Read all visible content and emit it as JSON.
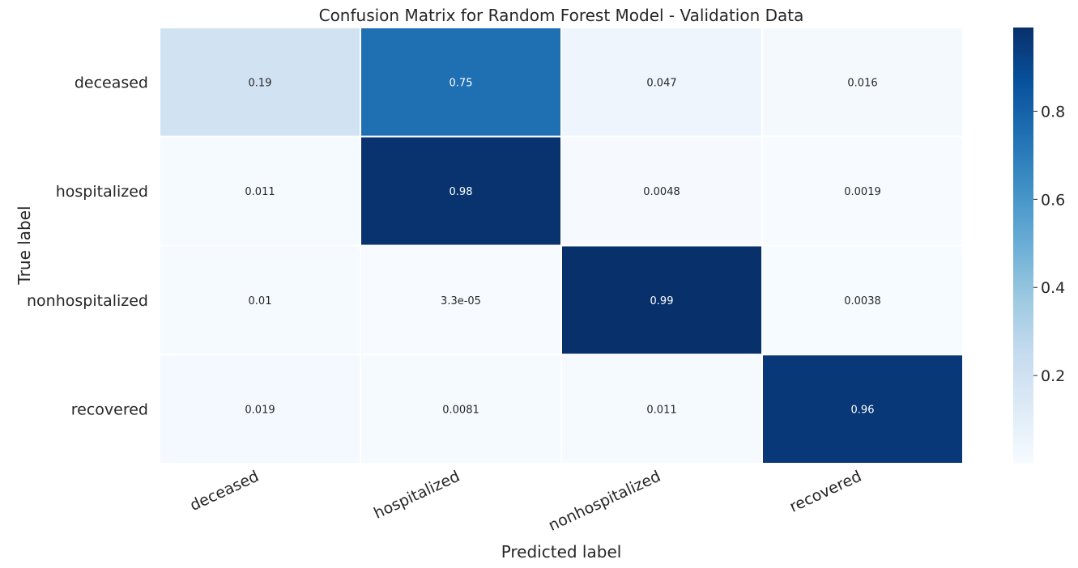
{
  "chart_data": {
    "type": "heatmap",
    "title": "Confusion Matrix for Random Forest Model - Validation Data",
    "xlabel": "Predicted label",
    "ylabel": "True label",
    "x_categories": [
      "deceased",
      "hospitalized",
      "nonhospitalized",
      "recovered"
    ],
    "y_categories": [
      "deceased",
      "hospitalized",
      "nonhospitalized",
      "recovered"
    ],
    "values": [
      [
        0.19,
        0.75,
        0.047,
        0.016
      ],
      [
        0.011,
        0.98,
        0.0048,
        0.0019
      ],
      [
        0.01,
        3.3e-05,
        0.99,
        0.0038
      ],
      [
        0.019,
        0.0081,
        0.011,
        0.96
      ]
    ],
    "annotations": [
      [
        "0.19",
        "0.75",
        "0.047",
        "0.016"
      ],
      [
        "0.011",
        "0.98",
        "0.0048",
        "0.0019"
      ],
      [
        "0.01",
        "3.3e-05",
        "0.99",
        "0.0038"
      ],
      [
        "0.019",
        "0.0081",
        "0.011",
        "0.96"
      ]
    ],
    "colormap": "Blues",
    "colorbar": {
      "range": [
        3.3e-05,
        0.99
      ],
      "ticks": [
        0.2,
        0.4,
        0.6,
        0.8
      ],
      "tick_labels": [
        "0.2",
        "0.4",
        "0.6",
        "0.8"
      ]
    },
    "grid": false
  }
}
